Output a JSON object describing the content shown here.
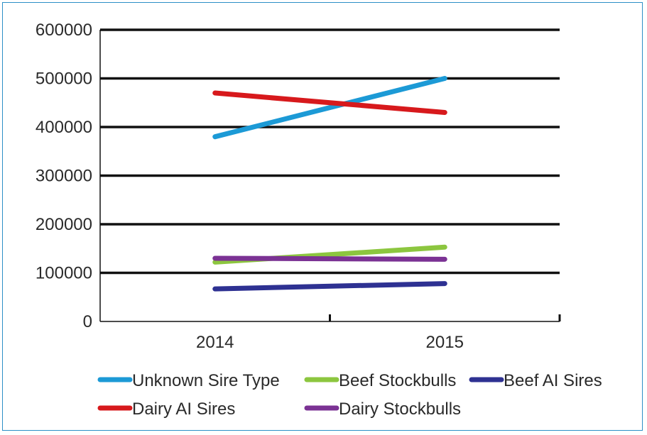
{
  "chart_data": {
    "type": "line",
    "x": [
      "2014",
      "2015"
    ],
    "ylim": [
      0,
      600000
    ],
    "yticks": [
      0,
      100000,
      200000,
      300000,
      400000,
      500000,
      600000
    ],
    "ytick_labels": [
      "0",
      "100000",
      "200000",
      "300000",
      "400000",
      "500000",
      "600000"
    ],
    "grid": true,
    "legend_position": "bottom",
    "series": [
      {
        "name": "Unknown Sire Type",
        "color": "#1c9ad6",
        "values": [
          380000,
          500000
        ]
      },
      {
        "name": "Beef Stockbulls",
        "color": "#8cc63f",
        "values": [
          122000,
          153000
        ]
      },
      {
        "name": "Beef AI Sires",
        "color": "#2e3192",
        "values": [
          67000,
          78000
        ]
      },
      {
        "name": "Dairy AI Sires",
        "color": "#d7191c",
        "values": [
          470000,
          430000
        ]
      },
      {
        "name": "Dairy Stockbulls",
        "color": "#7b3294",
        "values": [
          130000,
          128000
        ]
      }
    ]
  }
}
